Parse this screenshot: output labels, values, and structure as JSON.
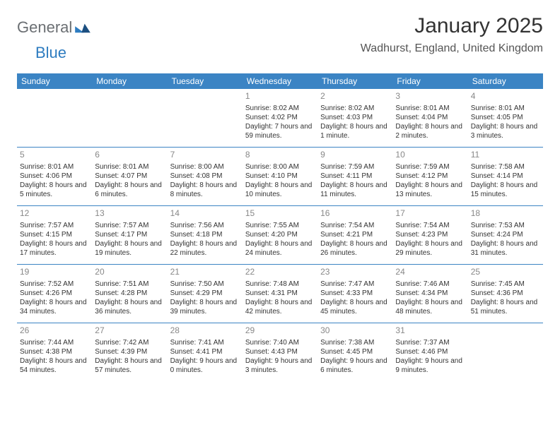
{
  "brand": {
    "part1": "General",
    "part2": "Blue"
  },
  "title": "January 2025",
  "location": "Wadhurst, England, United Kingdom",
  "colors": {
    "header_bg": "#3b84c4",
    "header_text": "#ffffff",
    "daynum": "#888888",
    "body_text": "#333333",
    "brand_gray": "#6b6f73",
    "brand_blue": "#2e7cc0",
    "page_bg": "#ffffff"
  },
  "typography": {
    "title_fontsize": 30,
    "location_fontsize": 16,
    "dayheader_fontsize": 12,
    "daynum_fontsize": 12,
    "cell_fontsize": 10
  },
  "day_headers": [
    "Sunday",
    "Monday",
    "Tuesday",
    "Wednesday",
    "Thursday",
    "Friday",
    "Saturday"
  ],
  "weeks": [
    [
      null,
      null,
      null,
      {
        "n": "1",
        "sr": "Sunrise: 8:02 AM",
        "ss": "Sunset: 4:02 PM",
        "dl": "Daylight: 7 hours and 59 minutes."
      },
      {
        "n": "2",
        "sr": "Sunrise: 8:02 AM",
        "ss": "Sunset: 4:03 PM",
        "dl": "Daylight: 8 hours and 1 minute."
      },
      {
        "n": "3",
        "sr": "Sunrise: 8:01 AM",
        "ss": "Sunset: 4:04 PM",
        "dl": "Daylight: 8 hours and 2 minutes."
      },
      {
        "n": "4",
        "sr": "Sunrise: 8:01 AM",
        "ss": "Sunset: 4:05 PM",
        "dl": "Daylight: 8 hours and 3 minutes."
      }
    ],
    [
      {
        "n": "5",
        "sr": "Sunrise: 8:01 AM",
        "ss": "Sunset: 4:06 PM",
        "dl": "Daylight: 8 hours and 5 minutes."
      },
      {
        "n": "6",
        "sr": "Sunrise: 8:01 AM",
        "ss": "Sunset: 4:07 PM",
        "dl": "Daylight: 8 hours and 6 minutes."
      },
      {
        "n": "7",
        "sr": "Sunrise: 8:00 AM",
        "ss": "Sunset: 4:08 PM",
        "dl": "Daylight: 8 hours and 8 minutes."
      },
      {
        "n": "8",
        "sr": "Sunrise: 8:00 AM",
        "ss": "Sunset: 4:10 PM",
        "dl": "Daylight: 8 hours and 10 minutes."
      },
      {
        "n": "9",
        "sr": "Sunrise: 7:59 AM",
        "ss": "Sunset: 4:11 PM",
        "dl": "Daylight: 8 hours and 11 minutes."
      },
      {
        "n": "10",
        "sr": "Sunrise: 7:59 AM",
        "ss": "Sunset: 4:12 PM",
        "dl": "Daylight: 8 hours and 13 minutes."
      },
      {
        "n": "11",
        "sr": "Sunrise: 7:58 AM",
        "ss": "Sunset: 4:14 PM",
        "dl": "Daylight: 8 hours and 15 minutes."
      }
    ],
    [
      {
        "n": "12",
        "sr": "Sunrise: 7:57 AM",
        "ss": "Sunset: 4:15 PM",
        "dl": "Daylight: 8 hours and 17 minutes."
      },
      {
        "n": "13",
        "sr": "Sunrise: 7:57 AM",
        "ss": "Sunset: 4:17 PM",
        "dl": "Daylight: 8 hours and 19 minutes."
      },
      {
        "n": "14",
        "sr": "Sunrise: 7:56 AM",
        "ss": "Sunset: 4:18 PM",
        "dl": "Daylight: 8 hours and 22 minutes."
      },
      {
        "n": "15",
        "sr": "Sunrise: 7:55 AM",
        "ss": "Sunset: 4:20 PM",
        "dl": "Daylight: 8 hours and 24 minutes."
      },
      {
        "n": "16",
        "sr": "Sunrise: 7:54 AM",
        "ss": "Sunset: 4:21 PM",
        "dl": "Daylight: 8 hours and 26 minutes."
      },
      {
        "n": "17",
        "sr": "Sunrise: 7:54 AM",
        "ss": "Sunset: 4:23 PM",
        "dl": "Daylight: 8 hours and 29 minutes."
      },
      {
        "n": "18",
        "sr": "Sunrise: 7:53 AM",
        "ss": "Sunset: 4:24 PM",
        "dl": "Daylight: 8 hours and 31 minutes."
      }
    ],
    [
      {
        "n": "19",
        "sr": "Sunrise: 7:52 AM",
        "ss": "Sunset: 4:26 PM",
        "dl": "Daylight: 8 hours and 34 minutes."
      },
      {
        "n": "20",
        "sr": "Sunrise: 7:51 AM",
        "ss": "Sunset: 4:28 PM",
        "dl": "Daylight: 8 hours and 36 minutes."
      },
      {
        "n": "21",
        "sr": "Sunrise: 7:50 AM",
        "ss": "Sunset: 4:29 PM",
        "dl": "Daylight: 8 hours and 39 minutes."
      },
      {
        "n": "22",
        "sr": "Sunrise: 7:48 AM",
        "ss": "Sunset: 4:31 PM",
        "dl": "Daylight: 8 hours and 42 minutes."
      },
      {
        "n": "23",
        "sr": "Sunrise: 7:47 AM",
        "ss": "Sunset: 4:33 PM",
        "dl": "Daylight: 8 hours and 45 minutes."
      },
      {
        "n": "24",
        "sr": "Sunrise: 7:46 AM",
        "ss": "Sunset: 4:34 PM",
        "dl": "Daylight: 8 hours and 48 minutes."
      },
      {
        "n": "25",
        "sr": "Sunrise: 7:45 AM",
        "ss": "Sunset: 4:36 PM",
        "dl": "Daylight: 8 hours and 51 minutes."
      }
    ],
    [
      {
        "n": "26",
        "sr": "Sunrise: 7:44 AM",
        "ss": "Sunset: 4:38 PM",
        "dl": "Daylight: 8 hours and 54 minutes."
      },
      {
        "n": "27",
        "sr": "Sunrise: 7:42 AM",
        "ss": "Sunset: 4:39 PM",
        "dl": "Daylight: 8 hours and 57 minutes."
      },
      {
        "n": "28",
        "sr": "Sunrise: 7:41 AM",
        "ss": "Sunset: 4:41 PM",
        "dl": "Daylight: 9 hours and 0 minutes."
      },
      {
        "n": "29",
        "sr": "Sunrise: 7:40 AM",
        "ss": "Sunset: 4:43 PM",
        "dl": "Daylight: 9 hours and 3 minutes."
      },
      {
        "n": "30",
        "sr": "Sunrise: 7:38 AM",
        "ss": "Sunset: 4:45 PM",
        "dl": "Daylight: 9 hours and 6 minutes."
      },
      {
        "n": "31",
        "sr": "Sunrise: 7:37 AM",
        "ss": "Sunset: 4:46 PM",
        "dl": "Daylight: 9 hours and 9 minutes."
      },
      null
    ]
  ]
}
